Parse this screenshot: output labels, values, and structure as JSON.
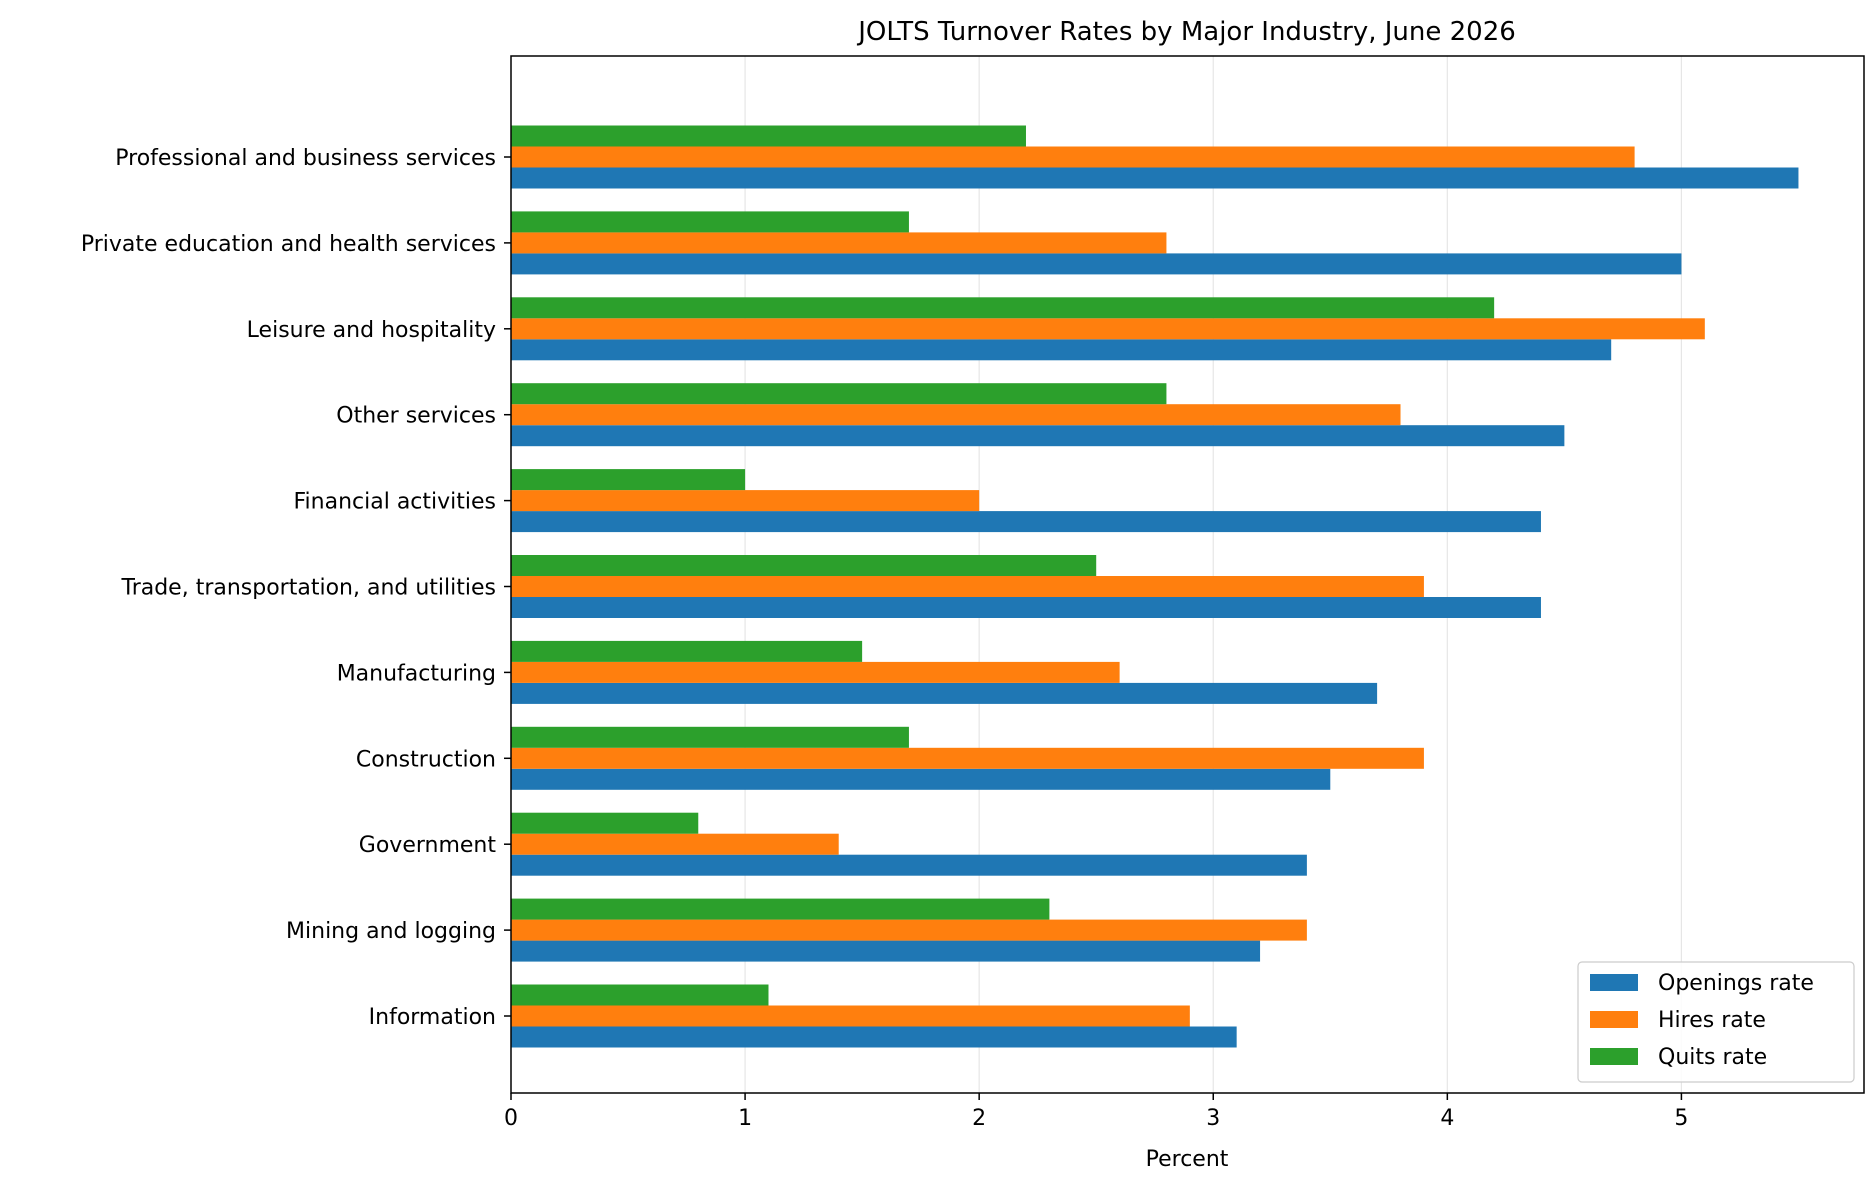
{
  "chart_data": {
    "type": "bar",
    "orientation": "horizontal",
    "title": "JOLTS Turnover Rates by Major Industry, June 2026",
    "xlabel": "Percent",
    "ylabel": "",
    "xlim": [
      0,
      5.78
    ],
    "xticks": [
      0,
      1,
      2,
      3,
      4,
      5
    ],
    "grid": "vertical",
    "legend_position": "bottom-right",
    "categories": [
      "Professional and business services",
      "Private education and health services",
      "Leisure and hospitality",
      "Other services",
      "Financial activities",
      "Trade, transportation, and utilities",
      "Manufacturing",
      "Construction",
      "Government",
      "Mining and logging",
      "Information"
    ],
    "series": [
      {
        "name": "Openings rate",
        "color": "#1f77b4",
        "values": [
          5.5,
          5.0,
          4.7,
          4.5,
          4.4,
          4.4,
          3.7,
          3.5,
          3.4,
          3.2,
          3.1
        ]
      },
      {
        "name": "Hires rate",
        "color": "#ff7f0e",
        "values": [
          4.8,
          2.8,
          5.1,
          3.8,
          2.0,
          3.9,
          2.6,
          3.9,
          1.4,
          3.4,
          2.9
        ]
      },
      {
        "name": "Quits rate",
        "color": "#2ca02c",
        "values": [
          2.2,
          1.7,
          4.2,
          2.8,
          1.0,
          2.5,
          1.5,
          1.7,
          0.8,
          2.3,
          1.1
        ]
      }
    ]
  }
}
